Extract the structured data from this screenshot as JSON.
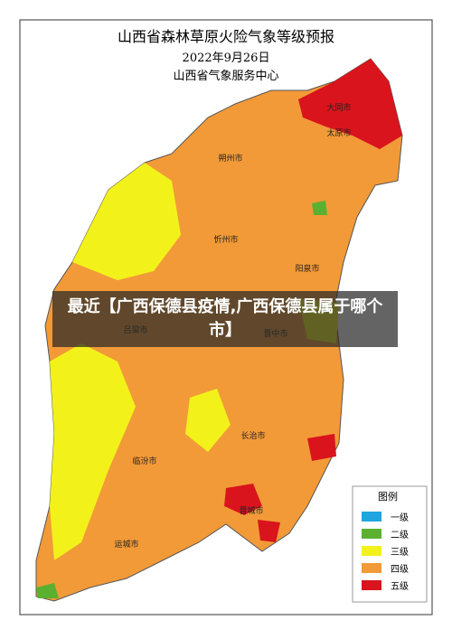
{
  "header": {
    "title": "山西省森林草原火险气象等级预报",
    "date": "2022年9月26日",
    "issuer": "山西省气象服务中心"
  },
  "overlay": {
    "headline": "最近【广西保德县疫情,广西保德县属于哪个市】"
  },
  "legend": {
    "title": "图例",
    "items": [
      {
        "label": "一级",
        "color": "#1fa5e0"
      },
      {
        "label": "二级",
        "color": "#5bb030"
      },
      {
        "label": "三级",
        "color": "#f2f21a"
      },
      {
        "label": "四级",
        "color": "#f29a38"
      },
      {
        "label": "五级",
        "color": "#d9141c"
      }
    ]
  },
  "cities": [
    "大同市",
    "朔州市",
    "忻州市",
    "太原市",
    "吕梁市",
    "晋中市",
    "阳泉市",
    "长治市",
    "临汾市",
    "晋城市",
    "运城市"
  ]
}
